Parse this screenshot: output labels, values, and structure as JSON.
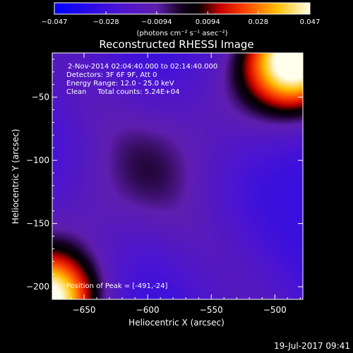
{
  "chart_data": {
    "type": "heatmap",
    "title": "Reconstructed RHESSI Image",
    "xlabel": "Heliocentric X (arcsec)",
    "ylabel": "Heliocentric Y (arcsec)",
    "xlim": [
      -675,
      -478
    ],
    "ylim": [
      -210,
      -15
    ],
    "x_ticks": [
      -650,
      -600,
      -550,
      -500
    ],
    "y_ticks": [
      -50,
      -100,
      -150,
      -200
    ],
    "x_tick_labels": [
      "−650",
      "−600",
      "−550",
      "−500"
    ],
    "y_tick_labels": [
      "−50",
      "−100",
      "−150",
      "−200"
    ],
    "colorbar": {
      "min": -0.047,
      "max": 0.047,
      "ticks": [
        -0.047,
        -0.028,
        -0.0094,
        0.0094,
        0.028,
        0.047
      ],
      "tick_labels": [
        "−0.047",
        "−0.028",
        "−0.0094",
        "0.0094",
        "0.028",
        "0.047"
      ],
      "units": "(photons cm⁻² s⁻¹ asec⁻²)"
    },
    "annotations": [
      "2-Nov-2014 02:04:40.000 to 02:14:40.000",
      "Detectors: 3F 6F 9F, Att 0",
      "Energy Range: 12.0 - 25.0 keV",
      "Clean     Total counts: 5.24E+04"
    ],
    "peak_label": "Position of Peak = [-491,-24]",
    "peak_position": [
      -491,
      -24
    ],
    "features": [
      {
        "shape": "gaussian",
        "x": -485,
        "y": -22,
        "sigma": 28,
        "amplitude": 0.047
      },
      {
        "shape": "gaussian",
        "x": -676,
        "y": -210,
        "sigma": 26,
        "amplitude": 0.047
      },
      {
        "shape": "ridge",
        "through": [
          -600,
          -107
        ],
        "angle_deg": 38,
        "width": 32,
        "amplitude": -0.012
      },
      {
        "shape": "ridge",
        "through": [
          -600,
          -107
        ],
        "angle_deg": -52,
        "width": 26,
        "amplitude": -0.006
      },
      {
        "shape": "baseline",
        "value": -0.03
      }
    ]
  },
  "footer": {
    "date": "19-Jul-2017 09:41"
  }
}
